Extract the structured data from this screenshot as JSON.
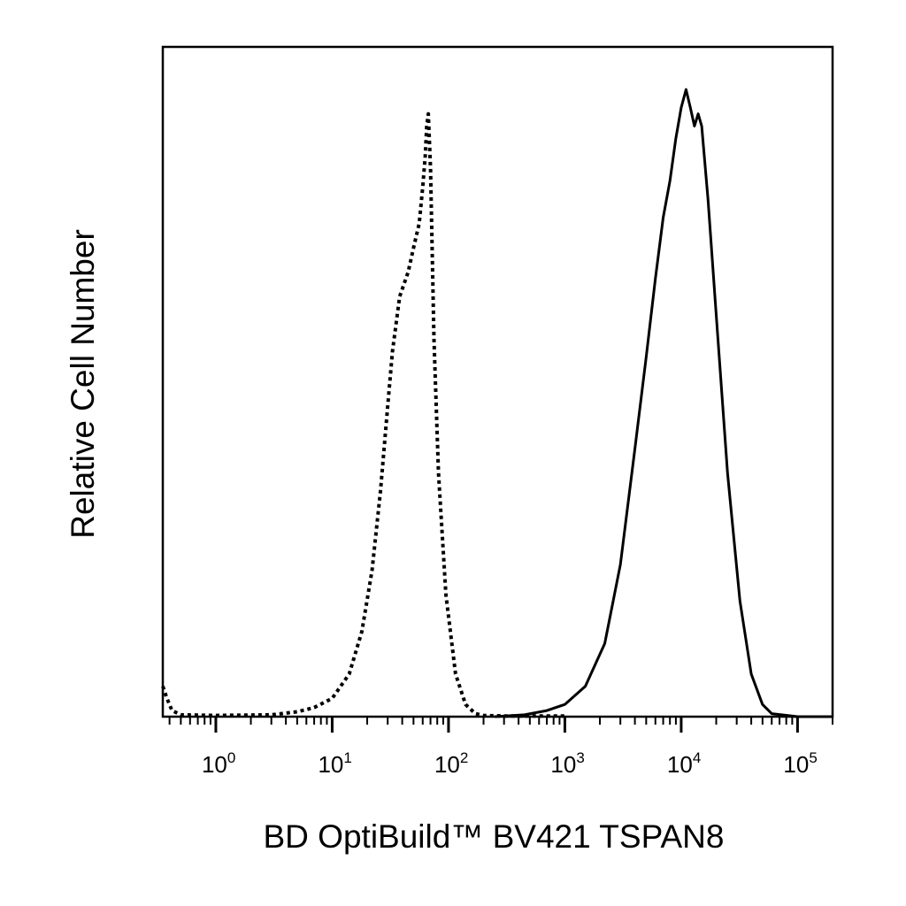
{
  "chart_data": {
    "type": "line",
    "title": "",
    "xlabel": "BD OptiBuild™ BV421 TSPAN8",
    "ylabel": "Relative Cell Number",
    "x_scale": "log",
    "xlim": [
      0.35,
      200000
    ],
    "ylim": [
      0,
      1.1
    ],
    "y_ticks_shown": false,
    "grid": false,
    "legend": "none",
    "x_ticks": [
      {
        "value": 1,
        "base": "10",
        "exp": "0"
      },
      {
        "value": 10,
        "base": "10",
        "exp": "1"
      },
      {
        "value": 100,
        "base": "10",
        "exp": "2"
      },
      {
        "value": 1000,
        "base": "10",
        "exp": "3"
      },
      {
        "value": 10000,
        "base": "10",
        "exp": "4"
      },
      {
        "value": 100000,
        "base": "10",
        "exp": "5"
      }
    ],
    "series": [
      {
        "style": "dotted",
        "color": "#000000",
        "x": [
          0.35,
          0.38,
          0.42,
          0.5,
          1,
          3,
          5,
          7,
          10,
          14,
          18,
          22,
          26,
          30,
          33,
          38,
          45,
          50,
          56,
          60,
          63,
          65,
          67,
          70,
          75,
          82,
          95,
          115,
          140,
          170,
          200,
          300,
          500,
          1000
        ],
        "y": [
          0.05,
          0.03,
          0.01,
          0.003,
          0.002,
          0.003,
          0.008,
          0.015,
          0.03,
          0.07,
          0.14,
          0.24,
          0.37,
          0.51,
          0.6,
          0.69,
          0.73,
          0.77,
          0.81,
          0.87,
          0.92,
          0.97,
          0.99,
          0.9,
          0.62,
          0.4,
          0.2,
          0.07,
          0.02,
          0.005,
          0.002,
          0.001,
          0.001,
          0.001
        ]
      },
      {
        "style": "solid",
        "color": "#000000",
        "x": [
          250,
          450,
          700,
          1000,
          1500,
          2200,
          3000,
          4000,
          5000,
          6000,
          7000,
          8000,
          9000,
          10000,
          11000,
          12000,
          13000,
          14000,
          15000,
          17000,
          20000,
          25000,
          32000,
          40000,
          50000,
          60000,
          100000,
          200000
        ],
        "y": [
          0.0,
          0.003,
          0.01,
          0.02,
          0.05,
          0.12,
          0.25,
          0.44,
          0.59,
          0.72,
          0.82,
          0.88,
          0.95,
          1.0,
          1.03,
          1.0,
          0.97,
          0.99,
          0.97,
          0.85,
          0.66,
          0.4,
          0.19,
          0.07,
          0.02,
          0.005,
          0.0,
          0.0
        ]
      }
    ]
  }
}
